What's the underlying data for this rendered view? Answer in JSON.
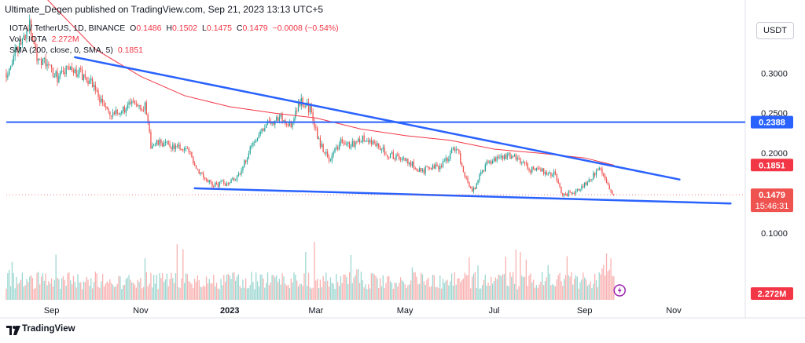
{
  "header": {
    "published": "Ultimate_Degen published on TradingView.com, Sep 21, 2023 13:13 UTC+5",
    "symbol": "IOTA / TetherUS, 1D, BINANCE",
    "ohlc": {
      "o_label": "O",
      "o": "0.1486",
      "h_label": "H",
      "h": "0.1502",
      "l_label": "L",
      "l": "0.1475",
      "c_label": "C",
      "c": "0.1479",
      "change": "−0.0008 (−0.54%)"
    },
    "vol_label": "Vol · IOTA",
    "vol_value": "2.272M",
    "sma_label": "SMA (200, close, 0, SMA, 5)",
    "sma_value": "0.1851"
  },
  "currency_button": "USDT",
  "footer": {
    "brand": "TradingView"
  },
  "colors": {
    "up": "#26a69a",
    "down": "#ef5350",
    "trend": "#2962ff",
    "sma": "#f23645",
    "text": "#131722"
  },
  "chart_data": {
    "type": "candlestick",
    "symbol": "IOTA/USDT",
    "timeframe": "1D",
    "y_ticks": [
      0.3,
      0.25,
      0.2,
      0.1
    ],
    "y_tick_labels": [
      "0.3000",
      "0.2500",
      "0.2000",
      "0.1000"
    ],
    "x_tick_labels": [
      "Sep",
      "Nov",
      "2023",
      "Mar",
      "May",
      "Jul",
      "Sep",
      "Nov"
    ],
    "ylim": [
      0.095,
      0.37
    ],
    "price_markers": [
      {
        "label": "0.2388",
        "value": 0.2388,
        "type": "horizontal-level",
        "color": "#2962ff"
      },
      {
        "label": "0.1851",
        "value": 0.1851,
        "type": "sma",
        "color": "#f23645"
      },
      {
        "label": "0.1479",
        "value": 0.1479,
        "type": "last-price",
        "color": "#f23645"
      }
    ],
    "countdown": "15:46:31",
    "volume_marker": {
      "label": "2.272M",
      "color": "#f23645"
    },
    "close_anchors": [
      [
        "2022-08-01",
        0.3
      ],
      [
        "2022-08-10",
        0.335
      ],
      [
        "2022-08-17",
        0.36
      ],
      [
        "2022-08-22",
        0.322
      ],
      [
        "2022-08-29",
        0.31
      ],
      [
        "2022-09-05",
        0.295
      ],
      [
        "2022-09-12",
        0.305
      ],
      [
        "2022-09-20",
        0.3
      ],
      [
        "2022-09-28",
        0.29
      ],
      [
        "2022-10-05",
        0.265
      ],
      [
        "2022-10-12",
        0.245
      ],
      [
        "2022-10-20",
        0.255
      ],
      [
        "2022-10-28",
        0.263
      ],
      [
        "2022-11-04",
        0.258
      ],
      [
        "2022-11-08",
        0.21
      ],
      [
        "2022-11-15",
        0.213
      ],
      [
        "2022-11-25",
        0.207
      ],
      [
        "2022-12-03",
        0.205
      ],
      [
        "2022-12-10",
        0.18
      ],
      [
        "2022-12-20",
        0.16
      ],
      [
        "2022-12-30",
        0.163
      ],
      [
        "2023-01-08",
        0.172
      ],
      [
        "2023-01-15",
        0.208
      ],
      [
        "2023-01-25",
        0.235
      ],
      [
        "2023-02-05",
        0.245
      ],
      [
        "2023-02-12",
        0.233
      ],
      [
        "2023-02-18",
        0.265
      ],
      [
        "2023-02-25",
        0.255
      ],
      [
        "2023-03-03",
        0.215
      ],
      [
        "2023-03-10",
        0.192
      ],
      [
        "2023-03-18",
        0.213
      ],
      [
        "2023-03-25",
        0.21
      ],
      [
        "2023-04-01",
        0.218
      ],
      [
        "2023-04-10",
        0.213
      ],
      [
        "2023-04-20",
        0.198
      ],
      [
        "2023-05-01",
        0.192
      ],
      [
        "2023-05-12",
        0.178
      ],
      [
        "2023-05-25",
        0.183
      ],
      [
        "2023-06-05",
        0.208
      ],
      [
        "2023-06-12",
        0.168
      ],
      [
        "2023-06-16",
        0.15
      ],
      [
        "2023-06-25",
        0.185
      ],
      [
        "2023-07-05",
        0.195
      ],
      [
        "2023-07-14",
        0.198
      ],
      [
        "2023-07-25",
        0.18
      ],
      [
        "2023-08-03",
        0.178
      ],
      [
        "2023-08-12",
        0.173
      ],
      [
        "2023-08-17",
        0.148
      ],
      [
        "2023-08-25",
        0.152
      ],
      [
        "2023-09-05",
        0.167
      ],
      [
        "2023-09-10",
        0.182
      ],
      [
        "2023-09-14",
        0.172
      ],
      [
        "2023-09-18",
        0.156
      ],
      [
        "2023-09-21",
        0.1479
      ]
    ],
    "sma200_anchors": [
      [
        "2022-08-25",
        0.4
      ],
      [
        "2022-10-01",
        0.33
      ],
      [
        "2022-11-01",
        0.296
      ],
      [
        "2022-12-01",
        0.272
      ],
      [
        "2023-01-01",
        0.258
      ],
      [
        "2023-02-01",
        0.25
      ],
      [
        "2023-03-01",
        0.244
      ],
      [
        "2023-04-01",
        0.23
      ],
      [
        "2023-05-01",
        0.222
      ],
      [
        "2023-06-01",
        0.216
      ],
      [
        "2023-07-01",
        0.205
      ],
      [
        "2023-08-01",
        0.2
      ],
      [
        "2023-09-01",
        0.194
      ],
      [
        "2023-09-21",
        0.185
      ]
    ],
    "trendlines": [
      {
        "name": "upper",
        "from": [
          "2022-09-17",
          0.32
        ],
        "to": [
          "2023-11-05",
          0.167
        ],
        "color": "#2962ff"
      },
      {
        "name": "lower",
        "from": [
          "2022-12-08",
          0.156
        ],
        "to": [
          "2023-12-10",
          0.137
        ],
        "color": "#2962ff"
      },
      {
        "name": "support-level",
        "value": 0.2388,
        "color": "#2962ff"
      }
    ]
  }
}
